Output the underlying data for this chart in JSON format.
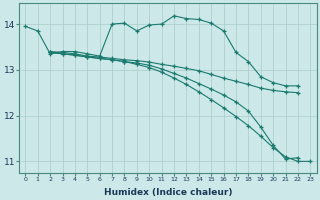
{
  "xlabel": "Humidex (Indice chaleur)",
  "bg_color": "#cce8e8",
  "line_color": "#1a7a6e",
  "grid_color": "#aacccc",
  "xlim": [
    -0.5,
    23.5
  ],
  "ylim": [
    10.75,
    14.45
  ],
  "yticks": [
    11,
    12,
    13,
    14
  ],
  "xticks": [
    0,
    1,
    2,
    3,
    4,
    5,
    6,
    7,
    8,
    9,
    10,
    11,
    12,
    13,
    14,
    15,
    16,
    17,
    18,
    19,
    20,
    21,
    22,
    23
  ],
  "lines": [
    {
      "x": [
        0,
        1,
        2,
        3,
        4,
        5,
        6,
        7,
        8,
        9,
        10,
        11,
        12,
        13,
        14,
        15,
        16,
        17,
        18,
        19,
        20,
        21,
        22
      ],
      "y": [
        13.95,
        13.85,
        13.35,
        13.4,
        13.4,
        13.35,
        13.3,
        14.0,
        14.02,
        13.85,
        13.98,
        14.0,
        14.18,
        14.12,
        14.1,
        14.02,
        13.85,
        13.38,
        13.18,
        12.85,
        12.72,
        12.65,
        12.65
      ]
    },
    {
      "x": [
        2,
        3,
        4,
        5,
        6,
        7,
        8,
        9,
        10,
        11,
        12,
        13,
        14,
        15,
        16,
        17,
        18,
        19,
        20,
        21,
        22
      ],
      "y": [
        13.4,
        13.38,
        13.35,
        13.3,
        13.28,
        13.25,
        13.22,
        13.2,
        13.17,
        13.12,
        13.08,
        13.03,
        12.98,
        12.9,
        12.82,
        12.75,
        12.68,
        12.6,
        12.55,
        12.52,
        12.5
      ]
    },
    {
      "x": [
        2,
        3,
        4,
        5,
        6,
        7,
        8,
        9,
        10,
        11,
        12,
        13,
        14,
        15,
        16,
        17,
        18,
        19,
        20,
        21,
        22
      ],
      "y": [
        13.38,
        13.35,
        13.32,
        13.28,
        13.25,
        13.22,
        13.18,
        13.15,
        13.1,
        13.02,
        12.92,
        12.82,
        12.7,
        12.58,
        12.45,
        12.3,
        12.1,
        11.75,
        11.35,
        11.05,
        11.08
      ]
    },
    {
      "x": [
        2,
        3,
        4,
        5,
        6,
        7,
        8,
        9,
        10,
        11,
        12,
        13,
        14,
        15,
        16,
        17,
        18,
        19,
        20,
        21,
        22,
        23
      ],
      "y": [
        13.38,
        13.35,
        13.32,
        13.28,
        13.25,
        13.22,
        13.18,
        13.12,
        13.05,
        12.95,
        12.82,
        12.68,
        12.52,
        12.35,
        12.17,
        11.98,
        11.78,
        11.55,
        11.3,
        11.1,
        11.0,
        11.0
      ]
    }
  ]
}
